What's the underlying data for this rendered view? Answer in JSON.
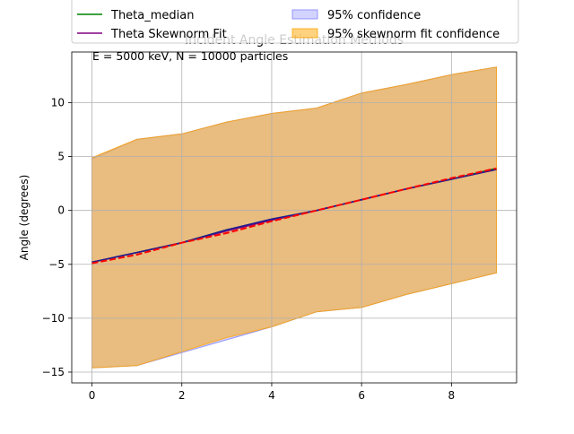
{
  "chart_data": {
    "type": "line",
    "title": "Incident Angle Estimation Methods",
    "annotation": "E = 5000 keV, N = 10000 particles",
    "xlabel": "",
    "ylabel": "Angle (degrees)",
    "xlim": [
      -0.45,
      9.45
    ],
    "ylim": [
      -16.0,
      14.7
    ],
    "xticks": [
      0,
      2,
      4,
      6,
      8
    ],
    "yticks": [
      -15,
      -10,
      -5,
      0,
      5,
      10
    ],
    "grid": true,
    "legend_position": "top (clipped above axes)",
    "x": [
      0,
      1,
      2,
      3,
      4,
      5,
      6,
      7,
      8,
      9
    ],
    "series": [
      {
        "name": "Theta_median",
        "color": "#008000",
        "style": "solid",
        "values": [
          -4.8,
          -3.9,
          -3.0,
          -1.8,
          -0.9,
          0.0,
          1.0,
          2.0,
          2.9,
          3.9
        ]
      },
      {
        "name": "Theta Skewnorm Fit",
        "color": "#800080",
        "style": "solid",
        "values": [
          -4.8,
          -3.9,
          -3.0,
          -1.9,
          -0.9,
          0.0,
          1.0,
          2.0,
          2.9,
          3.8
        ]
      },
      {
        "name": "",
        "color": "#1f1f8f",
        "style": "solid",
        "values": [
          -4.8,
          -3.9,
          -3.0,
          -1.8,
          -0.8,
          0.0,
          1.0,
          2.0,
          2.9,
          3.8
        ]
      },
      {
        "name": "",
        "color": "#ff0000",
        "style": "dashed",
        "values": [
          -4.9,
          -4.1,
          -3.0,
          -2.1,
          -1.0,
          0.0,
          1.0,
          2.0,
          3.0,
          3.9
        ]
      }
    ],
    "bands": [
      {
        "name": "95% confidence",
        "color": "#8080ff",
        "opacity": 0.35,
        "lower": [
          -14.6,
          -14.4,
          -13.2,
          -12.0,
          -10.8,
          -9.4,
          -9.0,
          -7.8,
          -6.8,
          -5.8
        ],
        "upper": [
          4.8,
          6.6,
          7.1,
          8.2,
          9.0,
          9.5,
          10.9,
          11.7,
          12.6,
          13.3
        ]
      },
      {
        "name": "95% skewnorm fit confidence",
        "color": "#ffa500",
        "opacity": 0.5,
        "lower": [
          -14.6,
          -14.4,
          -13.1,
          -11.8,
          -10.8,
          -9.4,
          -9.0,
          -7.8,
          -6.8,
          -5.8
        ],
        "upper": [
          4.9,
          6.6,
          7.1,
          8.2,
          9.0,
          9.5,
          10.9,
          11.7,
          12.6,
          13.3
        ]
      }
    ],
    "legend": {
      "left": [
        "Theta_median",
        "Theta Skewnorm Fit"
      ],
      "right": [
        "95% confidence",
        "95% skewnorm fit confidence"
      ]
    }
  }
}
